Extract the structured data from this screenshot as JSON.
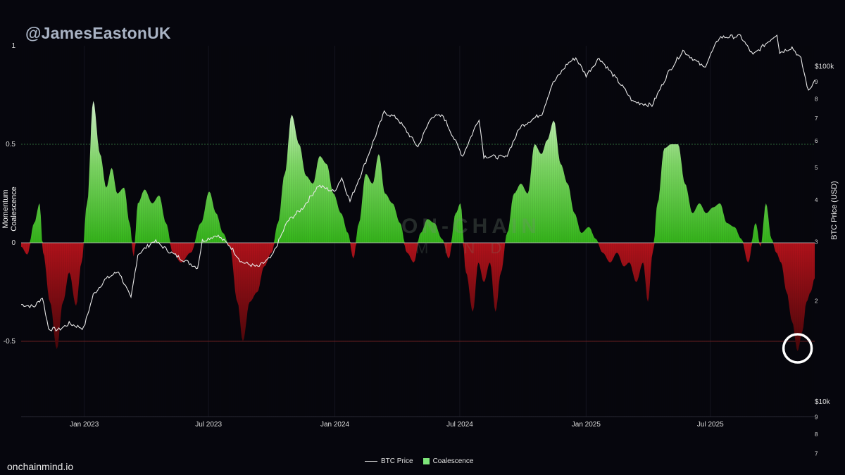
{
  "watermark": {
    "handle": "@JamesEastonUK",
    "site": "onchainmind.io",
    "logo": "ON-CHAIN",
    "logo_sub": "MIND"
  },
  "legend": {
    "price": "BTC Price",
    "coalescence": "Coalescence"
  },
  "chart_data": {
    "type": "area",
    "title": "",
    "ylabel": "Momentum Coalescence",
    "y2label": "BTC Price (USD)",
    "ylim": [
      -0.85,
      1.0
    ],
    "y2_scale": "log",
    "y2_ticks": [
      "$100k",
      "9",
      "8",
      "7",
      "6",
      "5",
      "4",
      "3",
      "2",
      "$10k",
      "9",
      "8",
      "7"
    ],
    "y2_tick_values": [
      100000,
      90000,
      80000,
      70000,
      60000,
      50000,
      40000,
      30000,
      20000,
      10000,
      9000,
      8000,
      7000
    ],
    "yticks": [
      "1",
      "0.5",
      "0",
      "-0.5"
    ],
    "ytick_values": [
      1,
      0.5,
      0,
      -0.5
    ],
    "xticks": [
      "Jan 2023",
      "Jul 2023",
      "Jan 2024",
      "Jul 2024",
      "Jan 2025",
      "Jul 2025"
    ],
    "xtick_dates": [
      "2023-01-01",
      "2023-07-01",
      "2024-01-01",
      "2024-07-01",
      "2025-01-01",
      "2025-07-01"
    ],
    "x_range": [
      "2022-10-01",
      "2025-11-30"
    ],
    "colors": {
      "positive": "#3fbf1f",
      "positive_light": "#c9f2c0",
      "negative": "#a8121a",
      "negative_dark": "#3a0508",
      "price": "#e8e8e8",
      "grid_half": "#2f6b3a",
      "grid_neg_half": "#6b2020"
    },
    "annotation": "circle-at-latest-low",
    "series": [
      {
        "name": "Coalescence",
        "points": [
          [
            "2022-10-01",
            -0.02
          ],
          [
            "2022-10-10",
            -0.06
          ],
          [
            "2022-10-20",
            0.1
          ],
          [
            "2022-10-28",
            0.2
          ],
          [
            "2022-11-02",
            -0.05
          ],
          [
            "2022-11-12",
            -0.3
          ],
          [
            "2022-11-22",
            -0.54
          ],
          [
            "2022-12-01",
            -0.3
          ],
          [
            "2022-12-10",
            -0.15
          ],
          [
            "2022-12-20",
            -0.32
          ],
          [
            "2022-12-28",
            -0.1
          ],
          [
            "2023-01-05",
            0.2
          ],
          [
            "2023-01-14",
            0.72
          ],
          [
            "2023-01-24",
            0.45
          ],
          [
            "2023-02-02",
            0.28
          ],
          [
            "2023-02-10",
            0.38
          ],
          [
            "2023-02-18",
            0.25
          ],
          [
            "2023-02-28",
            0.28
          ],
          [
            "2023-03-08",
            0.1
          ],
          [
            "2023-03-14",
            -0.07
          ],
          [
            "2023-03-20",
            0.2
          ],
          [
            "2023-03-30",
            0.27
          ],
          [
            "2023-04-10",
            0.2
          ],
          [
            "2023-04-20",
            0.24
          ],
          [
            "2023-04-30",
            0.1
          ],
          [
            "2023-05-10",
            -0.05
          ],
          [
            "2023-05-22",
            -0.1
          ],
          [
            "2023-06-05",
            -0.05
          ],
          [
            "2023-06-20",
            0.1
          ],
          [
            "2023-07-02",
            0.26
          ],
          [
            "2023-07-12",
            0.15
          ],
          [
            "2023-07-22",
            0.05
          ],
          [
            "2023-08-01",
            -0.02
          ],
          [
            "2023-08-12",
            -0.3
          ],
          [
            "2023-08-20",
            -0.5
          ],
          [
            "2023-08-30",
            -0.3
          ],
          [
            "2023-09-10",
            -0.25
          ],
          [
            "2023-09-20",
            -0.12
          ],
          [
            "2023-10-01",
            -0.05
          ],
          [
            "2023-10-10",
            0.1
          ],
          [
            "2023-10-20",
            0.35
          ],
          [
            "2023-10-30",
            0.65
          ],
          [
            "2023-11-10",
            0.5
          ],
          [
            "2023-11-20",
            0.34
          ],
          [
            "2023-11-30",
            0.3
          ],
          [
            "2023-12-10",
            0.44
          ],
          [
            "2023-12-20",
            0.4
          ],
          [
            "2023-12-30",
            0.25
          ],
          [
            "2024-01-10",
            0.15
          ],
          [
            "2024-01-20",
            0.05
          ],
          [
            "2024-01-28",
            -0.08
          ],
          [
            "2024-02-05",
            0.1
          ],
          [
            "2024-02-15",
            0.35
          ],
          [
            "2024-02-25",
            0.3
          ],
          [
            "2024-03-05",
            0.45
          ],
          [
            "2024-03-14",
            0.25
          ],
          [
            "2024-03-25",
            0.2
          ],
          [
            "2024-04-05",
            0.1
          ],
          [
            "2024-04-15",
            -0.05
          ],
          [
            "2024-04-25",
            -0.1
          ],
          [
            "2024-05-05",
            0.05
          ],
          [
            "2024-05-15",
            0.12
          ],
          [
            "2024-05-25",
            0.1
          ],
          [
            "2024-06-05",
            0.02
          ],
          [
            "2024-06-15",
            -0.08
          ],
          [
            "2024-06-25",
            0.15
          ],
          [
            "2024-07-02",
            0.2
          ],
          [
            "2024-07-10",
            -0.15
          ],
          [
            "2024-07-20",
            -0.35
          ],
          [
            "2024-07-28",
            -0.1
          ],
          [
            "2024-08-05",
            -0.2
          ],
          [
            "2024-08-14",
            -0.1
          ],
          [
            "2024-08-22",
            -0.35
          ],
          [
            "2024-08-30",
            -0.15
          ],
          [
            "2024-09-08",
            0.05
          ],
          [
            "2024-09-18",
            0.25
          ],
          [
            "2024-09-28",
            0.3
          ],
          [
            "2024-10-08",
            0.25
          ],
          [
            "2024-10-18",
            0.5
          ],
          [
            "2024-10-28",
            0.45
          ],
          [
            "2024-11-05",
            0.52
          ],
          [
            "2024-11-15",
            0.62
          ],
          [
            "2024-11-25",
            0.4
          ],
          [
            "2024-12-05",
            0.3
          ],
          [
            "2024-12-15",
            0.15
          ],
          [
            "2024-12-25",
            0.05
          ],
          [
            "2025-01-05",
            0.08
          ],
          [
            "2025-01-15",
            0.02
          ],
          [
            "2025-01-25",
            -0.05
          ],
          [
            "2025-02-05",
            -0.1
          ],
          [
            "2025-02-15",
            -0.05
          ],
          [
            "2025-02-25",
            -0.12
          ],
          [
            "2025-03-05",
            -0.1
          ],
          [
            "2025-03-15",
            -0.2
          ],
          [
            "2025-03-25",
            -0.1
          ],
          [
            "2025-04-01",
            -0.3
          ],
          [
            "2025-04-08",
            -0.05
          ],
          [
            "2025-04-15",
            0.2
          ],
          [
            "2025-04-25",
            0.48
          ],
          [
            "2025-05-05",
            0.5
          ],
          [
            "2025-05-15",
            0.5
          ],
          [
            "2025-05-25",
            0.3
          ],
          [
            "2025-06-05",
            0.15
          ],
          [
            "2025-06-15",
            0.2
          ],
          [
            "2025-06-25",
            0.15
          ],
          [
            "2025-07-05",
            0.18
          ],
          [
            "2025-07-15",
            0.2
          ],
          [
            "2025-07-25",
            0.1
          ],
          [
            "2025-08-05",
            0.08
          ],
          [
            "2025-08-15",
            0.02
          ],
          [
            "2025-08-25",
            -0.1
          ],
          [
            "2025-09-05",
            0.1
          ],
          [
            "2025-09-12",
            -0.02
          ],
          [
            "2025-09-20",
            0.2
          ],
          [
            "2025-09-28",
            0.02
          ],
          [
            "2025-10-05",
            -0.05
          ],
          [
            "2025-10-12",
            -0.1
          ],
          [
            "2025-10-20",
            -0.25
          ],
          [
            "2025-10-28",
            -0.4
          ],
          [
            "2025-11-05",
            -0.55
          ],
          [
            "2025-11-12",
            -0.45
          ],
          [
            "2025-11-18",
            -0.3
          ],
          [
            "2025-11-24",
            -0.25
          ],
          [
            "2025-11-30",
            -0.18
          ]
        ]
      },
      {
        "name": "BTC Price",
        "points": [
          [
            "2022-10-01",
            19500
          ],
          [
            "2022-10-20",
            19200
          ],
          [
            "2022-11-01",
            20500
          ],
          [
            "2022-11-10",
            16500
          ],
          [
            "2022-11-25",
            16400
          ],
          [
            "2022-12-10",
            17100
          ],
          [
            "2022-12-31",
            16550
          ],
          [
            "2023-01-14",
            20800
          ],
          [
            "2023-01-31",
            23100
          ],
          [
            "2023-02-20",
            24500
          ],
          [
            "2023-03-10",
            20300
          ],
          [
            "2023-03-20",
            27500
          ],
          [
            "2023-04-13",
            30200
          ],
          [
            "2023-05-10",
            27600
          ],
          [
            "2023-06-15",
            25100
          ],
          [
            "2023-06-22",
            30200
          ],
          [
            "2023-07-13",
            31400
          ],
          [
            "2023-08-01",
            29200
          ],
          [
            "2023-08-18",
            26100
          ],
          [
            "2023-09-11",
            25200
          ],
          [
            "2023-10-01",
            27000
          ],
          [
            "2023-10-24",
            34500
          ],
          [
            "2023-11-15",
            37800
          ],
          [
            "2023-12-08",
            44100
          ],
          [
            "2023-12-31",
            42300
          ],
          [
            "2024-01-11",
            46600
          ],
          [
            "2024-01-23",
            39600
          ],
          [
            "2024-02-15",
            52000
          ],
          [
            "2024-03-13",
            73000
          ],
          [
            "2024-04-01",
            70000
          ],
          [
            "2024-05-01",
            57500
          ],
          [
            "2024-05-21",
            71000
          ],
          [
            "2024-06-07",
            71000
          ],
          [
            "2024-07-05",
            54000
          ],
          [
            "2024-07-29",
            70000
          ],
          [
            "2024-08-05",
            54000
          ],
          [
            "2024-09-06",
            53500
          ],
          [
            "2024-09-27",
            66000
          ],
          [
            "2024-10-29",
            72500
          ],
          [
            "2024-11-12",
            88000
          ],
          [
            "2024-12-05",
            102000
          ],
          [
            "2024-12-17",
            106000
          ],
          [
            "2025-01-01",
            94000
          ],
          [
            "2025-01-20",
            106000
          ],
          [
            "2025-02-25",
            86000
          ],
          [
            "2025-03-10",
            78500
          ],
          [
            "2025-04-07",
            76500
          ],
          [
            "2025-05-01",
            96000
          ],
          [
            "2025-05-22",
            111500
          ],
          [
            "2025-06-22",
            99000
          ],
          [
            "2025-07-14",
            122000
          ],
          [
            "2025-08-14",
            123000
          ],
          [
            "2025-09-01",
            108000
          ],
          [
            "2025-10-06",
            125000
          ],
          [
            "2025-10-10",
            110000
          ],
          [
            "2025-10-28",
            114000
          ],
          [
            "2025-11-10",
            105000
          ],
          [
            "2025-11-21",
            84000
          ],
          [
            "2025-11-30",
            91000
          ]
        ]
      }
    ]
  }
}
